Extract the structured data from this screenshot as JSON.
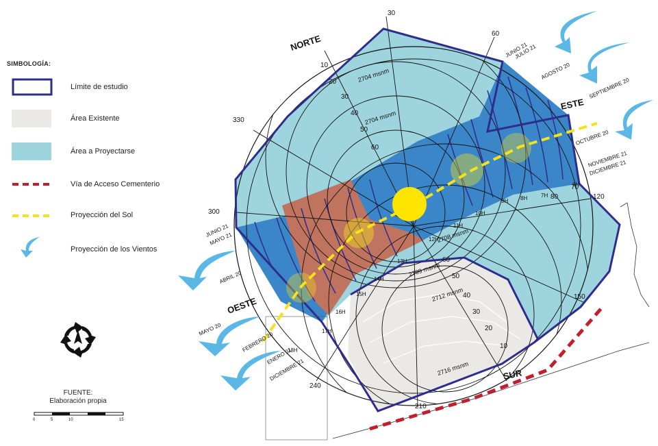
{
  "legend": {
    "title": "SIMBOLOGÍA:",
    "items": [
      {
        "label": "Límite de estudio",
        "type": "outline",
        "color": "#2e2d8c"
      },
      {
        "label": "Área Existente",
        "type": "fill",
        "color": "#ebe9e6"
      },
      {
        "label": "Área a Proyectarse",
        "type": "fill",
        "color": "#9ed4dd"
      },
      {
        "label": "Vía de Acceso Cementerio",
        "type": "dashed",
        "color": "#c0202e"
      },
      {
        "label": "Proyección del Sol",
        "type": "dashed",
        "color": "#f2e21a"
      },
      {
        "label": "Proyección de los Vientos",
        "type": "arrow-icon",
        "color": "#5bb7e6"
      }
    ]
  },
  "source": {
    "label": "FUENTE:",
    "value": "Elaboración propia"
  },
  "scale_bar": {
    "ticks": [
      "0",
      "5",
      "10",
      "15"
    ]
  },
  "compass": {
    "cardinals": {
      "north": "NORTE",
      "east": "ESTE",
      "south": "SUR",
      "west": "OESTE"
    },
    "degrees": [
      "30",
      "60",
      "120",
      "150",
      "210",
      "240",
      "300",
      "330"
    ],
    "altitudes": [
      "10",
      "20",
      "30",
      "40",
      "50",
      "60",
      "70",
      "80"
    ]
  },
  "contours": [
    "2704 msnm",
    "2704 msnm",
    "2708 msnm",
    "2709 msnm",
    "2712 msnm",
    "2716 msnm"
  ],
  "sun_path": {
    "dates_east": [
      "JUNIO 21",
      "JULIO 21",
      "AGOSTO 20",
      "SEPTIEMBRE 20",
      "OCTUBRE 20",
      "NOVIEMBRE 21",
      "DICIEMBRE 21"
    ],
    "dates_west": [
      "JUNIO 21",
      "MAYO 21",
      "ABRIL 20",
      "MAYO 20",
      "FEBRERO 20",
      "ENERO 21",
      "DICIEMBRE 21"
    ],
    "hours": [
      "6H",
      "7H",
      "8H",
      "9H",
      "10H",
      "11H",
      "12H",
      "13H",
      "14H",
      "15H",
      "16H",
      "17H",
      "18H"
    ]
  },
  "colors": {
    "boundary": "#2e2d8c",
    "existing": "#ebe9e6",
    "projected": "#9ed4dd",
    "sun_band": "#3b86c8",
    "building": "#c0735e",
    "sun": "#fde500",
    "sun_path": "#f4e31a",
    "road": "#c0202e",
    "wind": "#5bb7e6"
  }
}
